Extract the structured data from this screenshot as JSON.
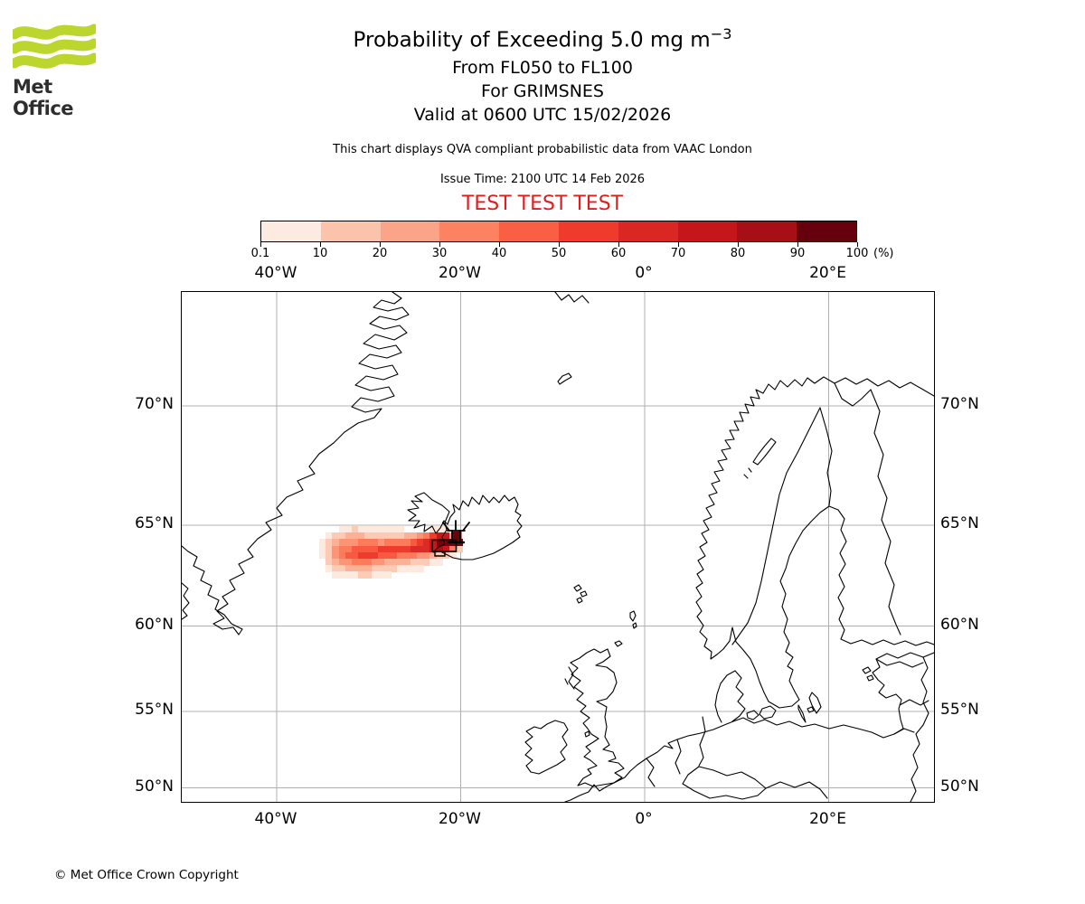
{
  "logo": {
    "brand": "Met Office",
    "green": "#bdd62e"
  },
  "header": {
    "title_main": "Probability of Exceeding 5.0 mg m",
    "title_sup": "−3",
    "subtitle_level": "From FL050 to FL100",
    "subtitle_volcano": "For GRIMSNES",
    "subtitle_valid": "Valid at 0600 UTC 15/02/2026",
    "note": "This chart displays QVA compliant probabilistic data from VAAC London",
    "issue_time": "Issue Time: 2100 UTC 14 Feb 2026",
    "test_banner": "TEST TEST TEST",
    "test_color": "#dc1e1e"
  },
  "colorbar": {
    "tick_labels": [
      "0.1",
      "10",
      "20",
      "30",
      "40",
      "50",
      "60",
      "70",
      "80",
      "90",
      "100"
    ],
    "unit": "(%)",
    "colors": [
      "#fdeae0",
      "#fcc3ac",
      "#fca487",
      "#fc8262",
      "#f85f43",
      "#ef3b2c",
      "#da2723",
      "#c5161c",
      "#a50f15",
      "#67000d"
    ]
  },
  "map": {
    "top_labels": [
      "40°W",
      "20°W",
      "0°",
      "20°E"
    ],
    "bottom_labels": [
      "40°W",
      "20°W",
      "0°",
      "20°E"
    ],
    "left_labels": [
      "70°N",
      "65°N",
      "60°N",
      "55°N",
      "50°N"
    ],
    "right_labels": [
      "70°N",
      "65°N",
      "60°N",
      "55°N",
      "50°N"
    ],
    "gridline_color": "#b0b0b0",
    "coastline_color": "#000000"
  },
  "plume": {
    "palette": [
      "#fee9df",
      "#fccab5",
      "#fcb095",
      "#fc9576",
      "#fb7b5b",
      "#f75a40",
      "#ef3b2c",
      "#dc2a24",
      "#c5171c",
      "#a50f15",
      "#7a020e"
    ],
    "grid": [
      [
        0,
        0,
        0,
        1,
        1,
        2,
        1,
        1,
        1,
        1,
        1,
        1,
        1,
        0,
        0,
        0,
        0,
        1,
        1,
        1,
        0,
        0,
        0
      ],
      [
        0,
        1,
        2,
        2,
        3,
        3,
        3,
        2,
        2,
        2,
        2,
        2,
        2,
        3,
        3,
        4,
        5,
        7,
        9,
        9,
        3,
        0,
        0
      ],
      [
        1,
        2,
        3,
        4,
        4,
        4,
        5,
        5,
        5,
        4,
        5,
        5,
        5,
        5,
        6,
        7,
        8,
        9,
        11,
        11,
        11,
        11,
        0
      ],
      [
        1,
        2,
        4,
        5,
        5,
        6,
        6,
        6,
        6,
        7,
        7,
        7,
        7,
        7,
        8,
        8,
        8,
        9,
        10,
        9,
        5,
        2,
        0
      ],
      [
        1,
        2,
        4,
        5,
        6,
        6,
        7,
        7,
        7,
        6,
        6,
        6,
        5,
        5,
        5,
        4,
        4,
        3,
        2,
        2,
        1,
        0,
        0
      ],
      [
        0,
        2,
        3,
        4,
        4,
        5,
        5,
        5,
        4,
        4,
        3,
        3,
        3,
        3,
        2,
        2,
        2,
        1,
        1,
        0,
        0,
        0,
        0
      ],
      [
        0,
        1,
        2,
        2,
        3,
        3,
        3,
        3,
        2,
        2,
        2,
        2,
        1,
        1,
        1,
        1,
        0,
        0,
        0,
        0,
        0,
        0,
        0
      ],
      [
        0,
        0,
        1,
        1,
        1,
        1,
        2,
        2,
        1,
        1,
        1,
        0,
        0,
        0,
        0,
        0,
        0,
        0,
        0,
        0,
        0,
        0,
        0
      ]
    ]
  },
  "footer": {
    "copyright": "© Met Office Crown Copyright"
  }
}
